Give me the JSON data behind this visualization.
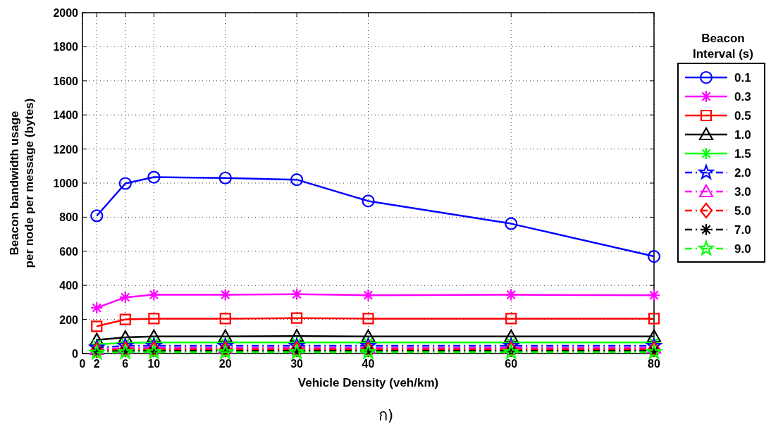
{
  "chart_data": {
    "type": "line",
    "xlabel": "Vehicle Density (veh/km)",
    "ylabel": "Beacon bandwidth usage\nper node per message (bytes)",
    "legend_title": "Beacon\nInterval (s)",
    "annotations": [
      "ก)"
    ],
    "x": [
      2,
      6,
      10,
      20,
      30,
      40,
      60,
      80
    ],
    "xlim": [
      0,
      80
    ],
    "xticks": [
      0,
      2,
      6,
      10,
      20,
      30,
      40,
      60,
      80
    ],
    "ylim": [
      0,
      2000
    ],
    "yticks": [
      0,
      200,
      400,
      600,
      800,
      1000,
      1200,
      1400,
      1600,
      1800,
      2000
    ],
    "grid": true,
    "legend": "right",
    "series": [
      {
        "name": "0.1",
        "color": "#0000ff",
        "marker": "circle",
        "line_style": "solid",
        "values": [
          808,
          998,
          1035,
          1030,
          1020,
          895,
          762,
          570
        ]
      },
      {
        "name": "0.3",
        "color": "#ff00ff",
        "marker": "cross",
        "line_style": "solid",
        "values": [
          268,
          330,
          345,
          345,
          348,
          342,
          345,
          342
        ]
      },
      {
        "name": "0.5",
        "color": "#ff0000",
        "marker": "square",
        "line_style": "solid",
        "values": [
          160,
          200,
          205,
          205,
          208,
          205,
          205,
          205
        ]
      },
      {
        "name": "1.0",
        "color": "#000000",
        "marker": "triangle",
        "line_style": "solid",
        "values": [
          80,
          95,
          100,
          100,
          102,
          100,
          100,
          100
        ]
      },
      {
        "name": "1.5",
        "color": "#00ff00",
        "marker": "cross",
        "line_style": "solid",
        "values": [
          55,
          62,
          65,
          65,
          65,
          65,
          65,
          65
        ]
      },
      {
        "name": "2.0",
        "color": "#0000ff",
        "marker": "star",
        "line_style": "dashed",
        "values": [
          35,
          45,
          45,
          45,
          45,
          45,
          45,
          45
        ]
      },
      {
        "name": "3.0",
        "color": "#ff00ff",
        "marker": "triangle",
        "line_style": "dashed",
        "values": [
          25,
          32,
          33,
          33,
          33,
          33,
          33,
          33
        ]
      },
      {
        "name": "5.0",
        "color": "#ff0000",
        "marker": "diamond",
        "line_style": "dashed",
        "values": [
          20,
          25,
          25,
          25,
          25,
          25,
          25,
          25
        ]
      },
      {
        "name": "7.0",
        "color": "#000000",
        "marker": "cross",
        "line_style": "dashed",
        "values": [
          12,
          15,
          15,
          15,
          15,
          15,
          15,
          15
        ]
      },
      {
        "name": "9.0",
        "color": "#00ff00",
        "marker": "star",
        "line_style": "dashed",
        "values": [
          5,
          8,
          8,
          8,
          8,
          8,
          8,
          8
        ]
      }
    ]
  }
}
